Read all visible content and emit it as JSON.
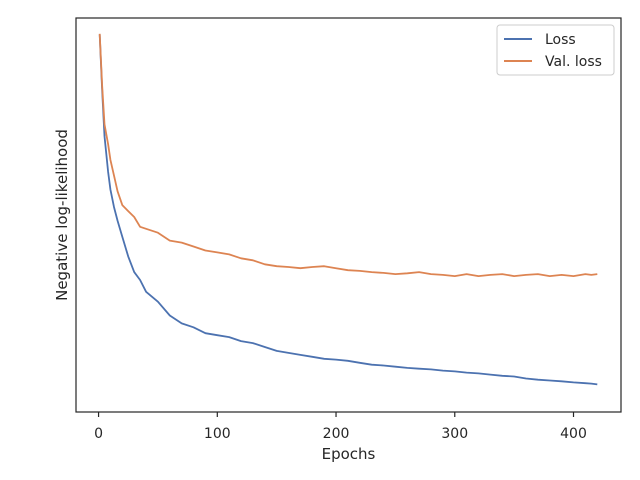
{
  "chart_data": {
    "type": "line",
    "xlabel": "Epochs",
    "ylabel": "Negative log-likelihood",
    "xlim": [
      -19,
      440
    ],
    "ylim": [
      0.0,
      1.0
    ],
    "x_ticks": [
      0,
      100,
      200,
      300,
      400
    ],
    "x_tick_labels": [
      "0",
      "100",
      "200",
      "300",
      "400"
    ],
    "y_ticks_shown": false,
    "grid": false,
    "legend_position": "top-right",
    "series": [
      {
        "name": "Loss",
        "color": "#4c72b0",
        "x": [
          1,
          3,
          5,
          8,
          10,
          13,
          16,
          20,
          25,
          30,
          35,
          40,
          50,
          60,
          70,
          80,
          90,
          100,
          110,
          120,
          130,
          140,
          150,
          160,
          170,
          180,
          190,
          200,
          210,
          220,
          230,
          240,
          250,
          260,
          270,
          280,
          290,
          300,
          310,
          320,
          330,
          340,
          350,
          360,
          370,
          380,
          390,
          400,
          410,
          415,
          420
        ],
        "y": [
          0.958,
          0.82,
          0.7,
          0.61,
          0.565,
          0.52,
          0.485,
          0.445,
          0.395,
          0.355,
          0.335,
          0.305,
          0.28,
          0.245,
          0.225,
          0.215,
          0.2,
          0.195,
          0.19,
          0.18,
          0.175,
          0.165,
          0.155,
          0.15,
          0.145,
          0.14,
          0.135,
          0.133,
          0.13,
          0.125,
          0.12,
          0.118,
          0.115,
          0.112,
          0.11,
          0.108,
          0.105,
          0.103,
          0.1,
          0.098,
          0.095,
          0.092,
          0.09,
          0.085,
          0.082,
          0.08,
          0.078,
          0.075,
          0.073,
          0.072,
          0.07
        ]
      },
      {
        "name": "Val. loss",
        "color": "#dd8452",
        "x": [
          1,
          3,
          5,
          8,
          10,
          13,
          16,
          20,
          25,
          30,
          35,
          40,
          50,
          60,
          70,
          80,
          90,
          100,
          110,
          120,
          130,
          140,
          150,
          160,
          170,
          180,
          190,
          200,
          210,
          220,
          230,
          240,
          250,
          260,
          270,
          280,
          290,
          300,
          310,
          320,
          330,
          340,
          350,
          360,
          370,
          380,
          390,
          400,
          410,
          415,
          420
        ],
        "y": [
          0.96,
          0.83,
          0.73,
          0.68,
          0.64,
          0.6,
          0.56,
          0.525,
          0.51,
          0.495,
          0.47,
          0.465,
          0.455,
          0.435,
          0.43,
          0.42,
          0.41,
          0.405,
          0.4,
          0.39,
          0.385,
          0.375,
          0.37,
          0.368,
          0.365,
          0.368,
          0.37,
          0.365,
          0.36,
          0.358,
          0.355,
          0.353,
          0.35,
          0.352,
          0.355,
          0.35,
          0.348,
          0.345,
          0.35,
          0.345,
          0.348,
          0.35,
          0.345,
          0.348,
          0.35,
          0.345,
          0.348,
          0.345,
          0.35,
          0.348,
          0.35
        ]
      }
    ]
  }
}
